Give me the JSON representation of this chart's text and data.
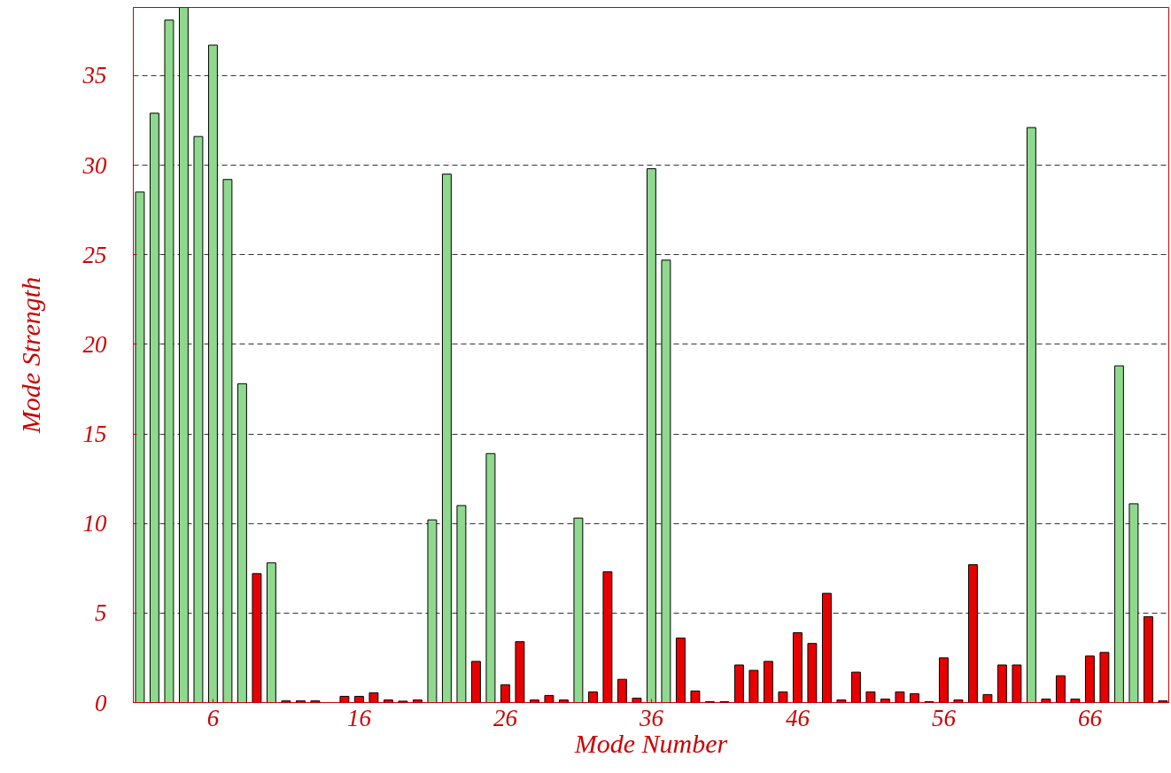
{
  "chart_data": {
    "type": "bar",
    "xlabel": "Mode Number",
    "ylabel": "Mode Strength",
    "x": [
      1,
      2,
      3,
      4,
      5,
      6,
      7,
      8,
      9,
      10,
      11,
      12,
      13,
      14,
      15,
      16,
      17,
      18,
      19,
      20,
      21,
      22,
      23,
      24,
      25,
      26,
      27,
      28,
      29,
      30,
      31,
      32,
      33,
      34,
      35,
      36,
      37,
      38,
      39,
      40,
      41,
      42,
      43,
      44,
      45,
      46,
      47,
      48,
      49,
      50,
      51,
      52,
      53,
      54,
      55,
      56,
      57,
      58,
      59,
      60,
      61,
      62,
      63,
      64,
      65,
      66,
      67,
      68,
      69,
      70,
      71
    ],
    "values": [
      28.5,
      32.9,
      38.1,
      38.8,
      31.6,
      36.7,
      29.2,
      17.8,
      7.2,
      7.8,
      0.1,
      0.1,
      0.1,
      null,
      0.35,
      0.35,
      0.55,
      0.15,
      0.08,
      0.15,
      10.2,
      29.5,
      11.0,
      2.3,
      13.9,
      1.0,
      3.4,
      0.15,
      0.4,
      0.15,
      10.3,
      0.6,
      7.3,
      1.3,
      0.25,
      29.8,
      24.7,
      3.6,
      0.65,
      0.05,
      0.05,
      2.1,
      1.8,
      2.3,
      0.6,
      3.9,
      3.3,
      6.1,
      0.15,
      1.7,
      0.6,
      0.2,
      0.6,
      0.5,
      0.05,
      2.5,
      0.15,
      7.7,
      0.45,
      2.1,
      2.1,
      32.1,
      0.2,
      1.5,
      0.2,
      2.6,
      2.8,
      18.8,
      11.1,
      4.8,
      0.1
    ],
    "colors": [
      "#8fd98f",
      "#8fd98f",
      "#8fd98f",
      "#8fd98f",
      "#8fd98f",
      "#8fd98f",
      "#8fd98f",
      "#8fd98f",
      "#e80000",
      "#8fd98f",
      "#e80000",
      "#e80000",
      "#e80000",
      "#e80000",
      "#e80000",
      "#e80000",
      "#e80000",
      "#e80000",
      "#e80000",
      "#e80000",
      "#8fd98f",
      "#8fd98f",
      "#8fd98f",
      "#e80000",
      "#8fd98f",
      "#e80000",
      "#e80000",
      "#e80000",
      "#e80000",
      "#e80000",
      "#8fd98f",
      "#e80000",
      "#e80000",
      "#e80000",
      "#e80000",
      "#8fd98f",
      "#8fd98f",
      "#e80000",
      "#e80000",
      "#e80000",
      "#e80000",
      "#e80000",
      "#e80000",
      "#e80000",
      "#e80000",
      "#e80000",
      "#e80000",
      "#e80000",
      "#e80000",
      "#e80000",
      "#e80000",
      "#e80000",
      "#e80000",
      "#e80000",
      "#e80000",
      "#e80000",
      "#e80000",
      "#e80000",
      "#e80000",
      "#e80000",
      "#e80000",
      "#8fd98f",
      "#e80000",
      "#e80000",
      "#e80000",
      "#e80000",
      "#e80000",
      "#8fd98f",
      "#8fd98f",
      "#e80000",
      "#e80000"
    ],
    "xlim": [
      0.55,
      71.4
    ],
    "xticks": [
      6,
      16,
      26,
      36,
      46,
      56,
      66
    ],
    "ylim": [
      0,
      38.8
    ],
    "yticks": [
      0,
      5,
      10,
      15,
      20,
      25,
      30,
      35
    ],
    "grid": "y"
  }
}
